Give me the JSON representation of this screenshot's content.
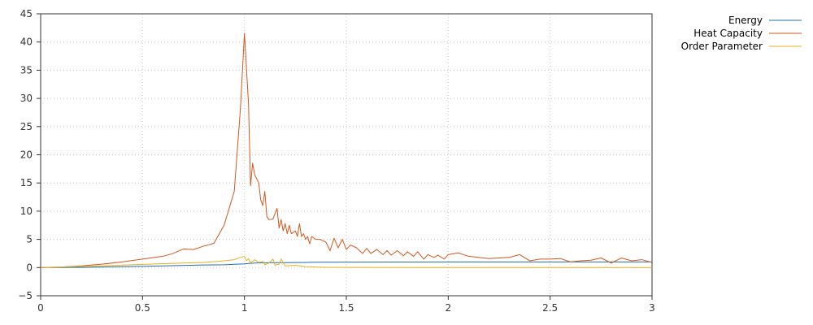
{
  "chart_data": {
    "type": "line",
    "title": "",
    "xlabel": "",
    "ylabel": "",
    "xlim": [
      0,
      3
    ],
    "ylim": [
      -5,
      45
    ],
    "xticks": [
      0,
      0.5,
      1,
      1.5,
      2,
      2.5,
      3
    ],
    "xtick_labels": [
      "0",
      "0.5",
      "1",
      "1.5",
      "2",
      "2.5",
      "3"
    ],
    "yticks": [
      -5,
      0,
      5,
      10,
      15,
      20,
      25,
      30,
      35,
      40,
      45
    ],
    "ytick_labels": [
      "−5",
      "0",
      "5",
      "10",
      "15",
      "20",
      "25",
      "30",
      "35",
      "40",
      "45"
    ],
    "grid": true,
    "legend_position": "top-right, outside plot",
    "series": [
      {
        "name": "Energy",
        "color": "#1f6fa8",
        "points": [
          [
            0,
            0
          ],
          [
            0.2,
            0.03
          ],
          [
            0.4,
            0.15
          ],
          [
            0.6,
            0.3
          ],
          [
            0.8,
            0.45
          ],
          [
            0.9,
            0.5
          ],
          [
            1.0,
            0.65
          ],
          [
            1.05,
            0.8
          ],
          [
            1.1,
            0.85
          ],
          [
            1.2,
            0.88
          ],
          [
            1.3,
            0.9
          ],
          [
            1.35,
            0.95
          ],
          [
            1.5,
            0.97
          ],
          [
            1.75,
            0.98
          ],
          [
            2.0,
            0.99
          ],
          [
            2.5,
            0.99
          ],
          [
            3.0,
            1.0
          ]
        ]
      },
      {
        "name": "Heat Capacity",
        "color": "#d2571e",
        "points": [
          [
            0,
            0
          ],
          [
            0.1,
            0.1
          ],
          [
            0.2,
            0.3
          ],
          [
            0.3,
            0.6
          ],
          [
            0.4,
            1.0
          ],
          [
            0.5,
            1.5
          ],
          [
            0.6,
            2.0
          ],
          [
            0.65,
            2.5
          ],
          [
            0.7,
            3.3
          ],
          [
            0.75,
            3.2
          ],
          [
            0.8,
            3.8
          ],
          [
            0.85,
            4.3
          ],
          [
            0.9,
            7.5
          ],
          [
            0.95,
            13.5
          ],
          [
            0.98,
            28
          ],
          [
            1.0,
            41.5
          ],
          [
            1.02,
            29
          ],
          [
            1.03,
            14.5
          ],
          [
            1.04,
            18.5
          ],
          [
            1.05,
            16.5
          ],
          [
            1.07,
            15
          ],
          [
            1.08,
            12
          ],
          [
            1.09,
            11
          ],
          [
            1.1,
            13.5
          ],
          [
            1.11,
            9
          ],
          [
            1.12,
            8.5
          ],
          [
            1.14,
            8.6
          ],
          [
            1.16,
            10.5
          ],
          [
            1.17,
            7
          ],
          [
            1.18,
            8.5
          ],
          [
            1.19,
            6.5
          ],
          [
            1.2,
            7.8
          ],
          [
            1.21,
            6
          ],
          [
            1.22,
            7.5
          ],
          [
            1.23,
            6
          ],
          [
            1.25,
            6.5
          ],
          [
            1.26,
            5.5
          ],
          [
            1.27,
            7.8
          ],
          [
            1.28,
            5.5
          ],
          [
            1.29,
            6
          ],
          [
            1.3,
            5
          ],
          [
            1.31,
            5.5
          ],
          [
            1.32,
            4.2
          ],
          [
            1.33,
            5.5
          ],
          [
            1.35,
            5
          ],
          [
            1.37,
            5
          ],
          [
            1.4,
            4.5
          ],
          [
            1.42,
            3
          ],
          [
            1.44,
            5.2
          ],
          [
            1.46,
            3.5
          ],
          [
            1.48,
            5
          ],
          [
            1.5,
            3.2
          ],
          [
            1.52,
            4
          ],
          [
            1.55,
            3.5
          ],
          [
            1.58,
            2.5
          ],
          [
            1.6,
            3.4
          ],
          [
            1.62,
            2.5
          ],
          [
            1.65,
            3.2
          ],
          [
            1.68,
            2.3
          ],
          [
            1.7,
            3
          ],
          [
            1.72,
            2.2
          ],
          [
            1.75,
            3
          ],
          [
            1.78,
            2.1
          ],
          [
            1.8,
            2.8
          ],
          [
            1.83,
            2
          ],
          [
            1.85,
            2.8
          ],
          [
            1.88,
            1.5
          ],
          [
            1.9,
            2.3
          ],
          [
            1.93,
            1.8
          ],
          [
            1.95,
            2.2
          ],
          [
            1.98,
            1.5
          ],
          [
            2.0,
            2.3
          ],
          [
            2.05,
            2.6
          ],
          [
            2.1,
            2.0
          ],
          [
            2.2,
            1.6
          ],
          [
            2.3,
            1.8
          ],
          [
            2.35,
            2.3
          ],
          [
            2.4,
            1.2
          ],
          [
            2.45,
            1.5
          ],
          [
            2.5,
            1.5
          ],
          [
            2.55,
            1.6
          ],
          [
            2.6,
            1.0
          ],
          [
            2.65,
            1.2
          ],
          [
            2.7,
            1.3
          ],
          [
            2.75,
            1.7
          ],
          [
            2.8,
            0.8
          ],
          [
            2.85,
            1.7
          ],
          [
            2.9,
            1.2
          ],
          [
            2.95,
            1.4
          ],
          [
            3.0,
            0.9
          ]
        ]
      },
      {
        "name": "Order Parameter",
        "color": "#e8b020",
        "points": [
          [
            0,
            0
          ],
          [
            0.3,
            0.3
          ],
          [
            0.6,
            0.7
          ],
          [
            0.8,
            0.9
          ],
          [
            0.9,
            1.2
          ],
          [
            0.95,
            1.4
          ],
          [
            0.98,
            1.8
          ],
          [
            1.0,
            2.0
          ],
          [
            1.01,
            1.2
          ],
          [
            1.02,
            1.6
          ],
          [
            1.03,
            0.8
          ],
          [
            1.05,
            1.4
          ],
          [
            1.07,
            0.9
          ],
          [
            1.09,
            1.1
          ],
          [
            1.1,
            0.5
          ],
          [
            1.12,
            0.8
          ],
          [
            1.14,
            1.5
          ],
          [
            1.15,
            0.4
          ],
          [
            1.17,
            0.6
          ],
          [
            1.18,
            1.5
          ],
          [
            1.2,
            0.3
          ],
          [
            1.25,
            0.4
          ],
          [
            1.3,
            0.15
          ],
          [
            1.35,
            0.1
          ],
          [
            1.4,
            0.05
          ],
          [
            1.5,
            0.02
          ],
          [
            2.0,
            0.0
          ],
          [
            3.0,
            0.0
          ]
        ]
      }
    ]
  }
}
